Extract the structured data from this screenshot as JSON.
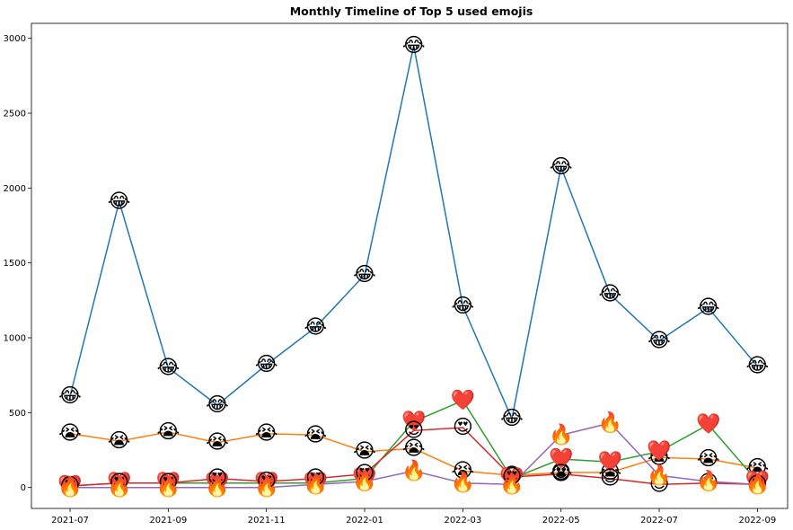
{
  "chart_data": {
    "type": "line",
    "title": "Monthly Timeline of Top 5 used emojis",
    "xlabel": "",
    "ylabel": "",
    "x": [
      "2021-07",
      "2021-08",
      "2021-09",
      "2021-10",
      "2021-11",
      "2021-12",
      "2022-01",
      "2022-02",
      "2022-03",
      "2022-04",
      "2022-05",
      "2022-06",
      "2022-07",
      "2022-08",
      "2022-09"
    ],
    "x_tick_labels": [
      "2021-07",
      "2021-09",
      "2021-11",
      "2022-01",
      "2022-03",
      "2022-05",
      "2022-07",
      "2022-09"
    ],
    "y_ticks": [
      0,
      500,
      1000,
      1500,
      2000,
      2500,
      3000
    ],
    "ylim": [
      -140,
      3100
    ],
    "grid": false,
    "legend": "none",
    "series": [
      {
        "emoji": "😂",
        "color": "#1f77b4",
        "values": [
          610,
          1910,
          800,
          550,
          820,
          1070,
          1420,
          2950,
          1210,
          460,
          2140,
          1290,
          980,
          1200,
          810
        ]
      },
      {
        "emoji": "😭",
        "color": "#ff7f0e",
        "values": [
          360,
          310,
          370,
          300,
          360,
          350,
          240,
          260,
          110,
          80,
          100,
          100,
          200,
          190,
          130
        ]
      },
      {
        "emoji": "❤️",
        "color": "#2ca02c",
        "values": [
          10,
          30,
          30,
          30,
          30,
          30,
          60,
          440,
          580,
          60,
          190,
          170,
          240,
          420,
          40
        ]
      },
      {
        "emoji": "😍",
        "color": "#d62728",
        "values": [
          10,
          30,
          30,
          60,
          40,
          60,
          90,
          380,
          400,
          70,
          90,
          60,
          20,
          30,
          20
        ]
      },
      {
        "emoji": "🔥",
        "color": "#9467bd",
        "values": [
          0,
          0,
          0,
          0,
          0,
          20,
          40,
          110,
          30,
          20,
          350,
          430,
          80,
          40,
          20
        ]
      }
    ]
  }
}
